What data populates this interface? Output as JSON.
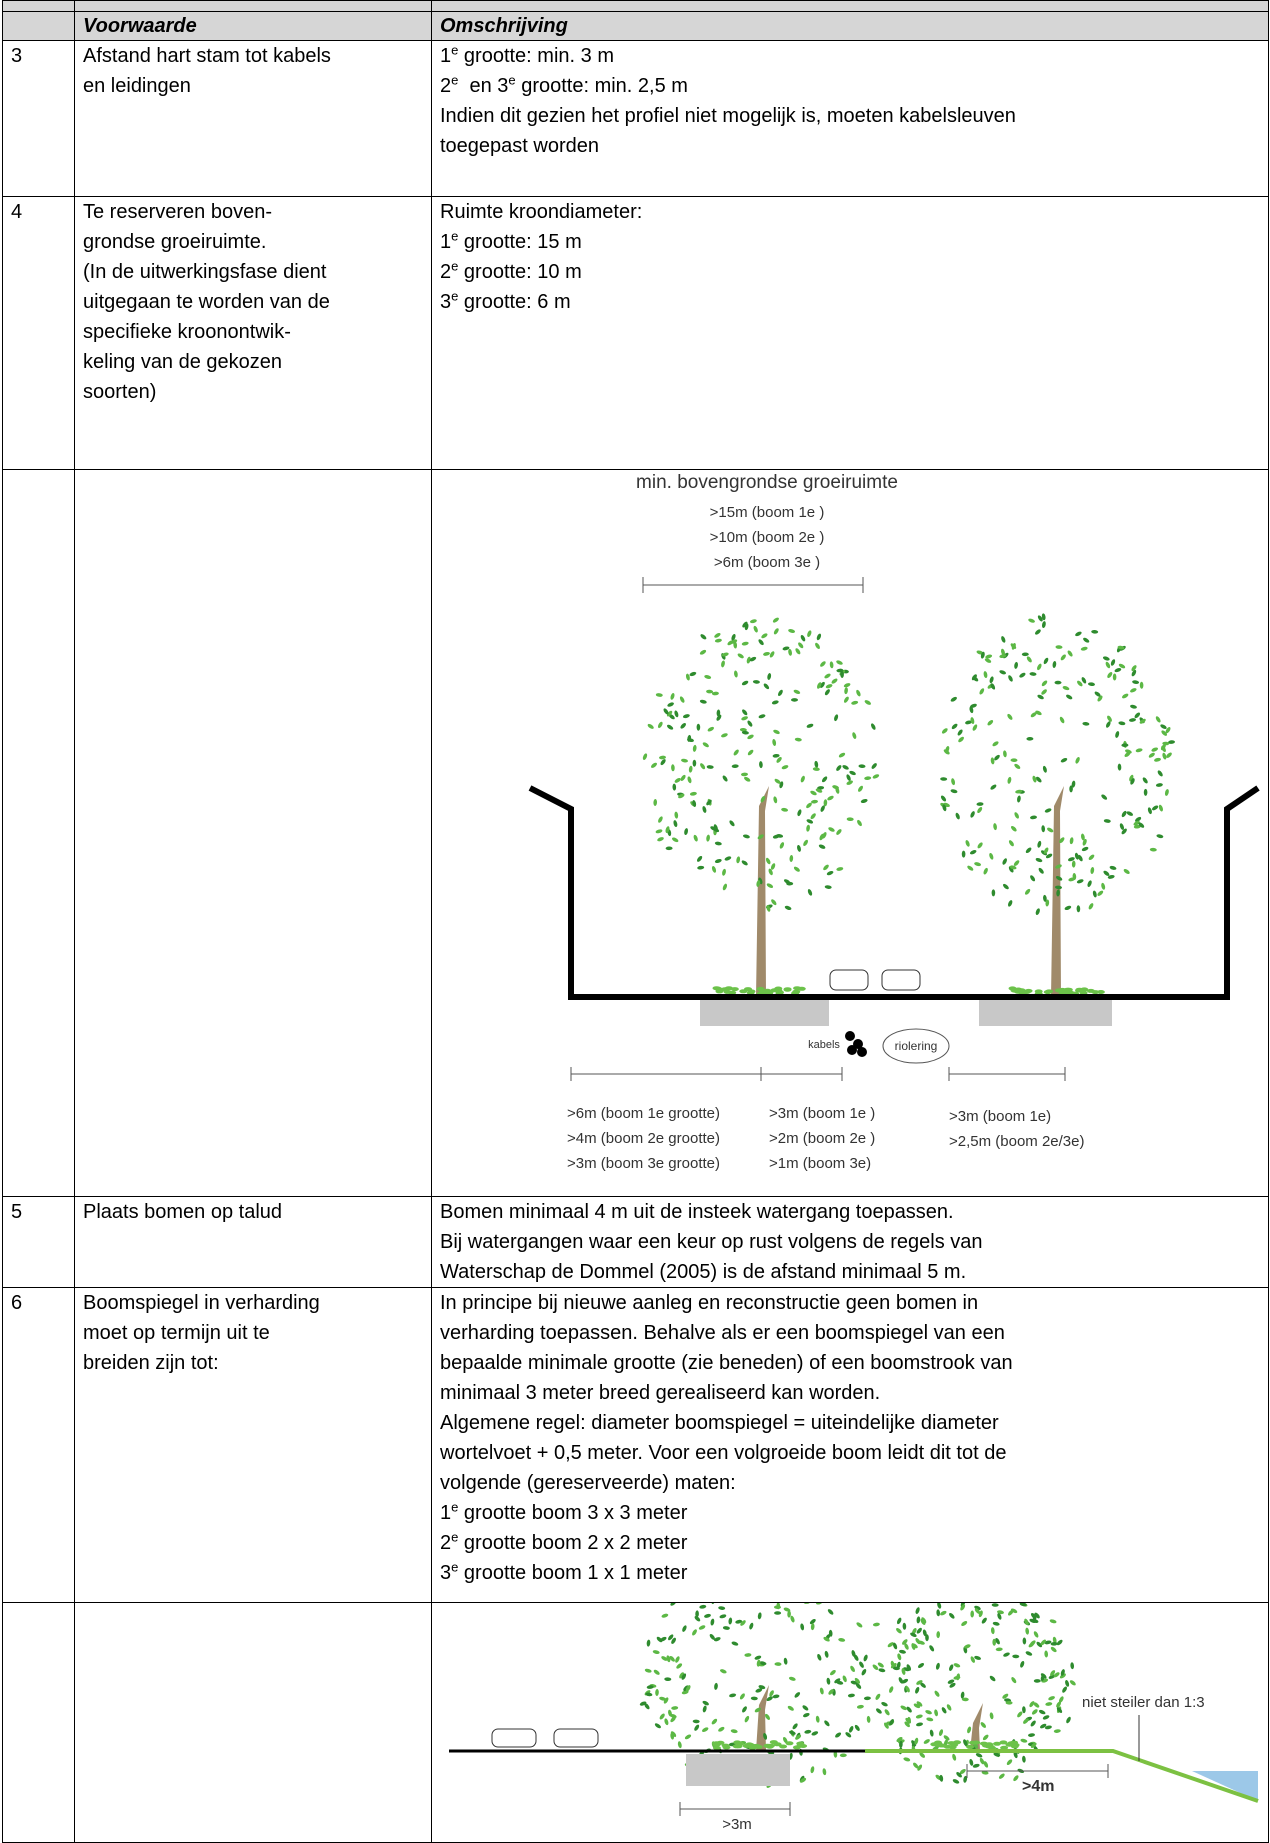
{
  "table": {
    "headers": [
      "Voorwaarde",
      "Omschrijving"
    ],
    "rows": [
      {
        "nr": "3",
        "voorwaarde": [
          "Afstand hart stam tot kabels",
          "en leidingen"
        ],
        "omschrijving": [
          [
            "1",
            "e",
            " grootte: min. 3 m"
          ],
          [
            "2",
            "e",
            "  en 3",
            "e",
            " grootte: min. 2,5 m"
          ],
          "Indien dit gezien het profiel niet mogelijk is, moeten kabelsleuven",
          "toegepast worden"
        ]
      },
      {
        "nr": "4",
        "voorwaarde": [
          "Te reserveren boven-",
          "grondse groeiruimte.",
          "(In de uitwerkingsfase dient",
          "uitgegaan te worden van de",
          "specifieke kroonontwik-",
          "keling van de gekozen",
          "soorten)"
        ],
        "omschrijving": [
          "Ruimte kroondiameter:",
          [
            "1",
            "e",
            " grootte: 15 m"
          ],
          [
            "2",
            "e",
            " grootte: 10 m"
          ],
          [
            "3",
            "e",
            " grootte: 6 m"
          ]
        ]
      },
      {
        "figure": {
          "title": "min. bovengrondse groeiruimte",
          "crown": [
            ">15m (boom 1e )",
            ">10m (boom 2e )",
            ">6m (boom 3e )"
          ],
          "kabels": "kabels",
          "riolering": "riolering",
          "left": [
            ">6m (boom 1e grootte)",
            ">4m (boom 2e grootte)",
            ">3m (boom 3e grootte)"
          ],
          "middle": [
            ">3m (boom 1e )",
            ">2m (boom 2e )",
            ">1m (boom 3e)"
          ],
          "right": [
            ">3m (boom 1e)",
            ">2,5m (boom 2e/3e)"
          ]
        }
      },
      {
        "nr": "5",
        "voorwaarde": [
          "Plaats bomen op talud"
        ],
        "omschrijving": [
          "Bomen minimaal 4 m uit de insteek watergang toepassen.",
          "Bij watergangen waar een keur op rust volgens de regels van",
          "Waterschap de Dommel (2005) is de afstand minimaal 5 m."
        ]
      },
      {
        "nr": "6",
        "voorwaarde": [
          "Boomspiegel in verharding",
          "moet op termijn uit te",
          "breiden zijn tot:"
        ],
        "omschrijving": [
          "In principe bij nieuwe aanleg en reconstructie geen bomen in",
          "verharding toepassen. Behalve als er een boomspiegel van een",
          "bepaalde minimale grootte (zie beneden) of een boomstrook van",
          "minimaal 3 meter breed gerealiseerd kan worden.",
          "Algemene regel: diameter boomspiegel = uiteindelijke diameter",
          "wortelvoet + 0,5 meter. Voor een volgroeide boom leidt dit tot de",
          "volgende (gereserveerde) maten:",
          [
            "1",
            "e",
            " grootte boom 3 x 3 meter"
          ],
          [
            "2",
            "e",
            " grootte boom 2 x 2 meter"
          ],
          [
            "3",
            "e",
            " grootte boom 1 x 1 meter"
          ]
        ]
      },
      {
        "figure": {
          "slope": "niet steiler dan 1:3",
          "distance": ">4m",
          "pit": ">3m"
        }
      }
    ]
  }
}
